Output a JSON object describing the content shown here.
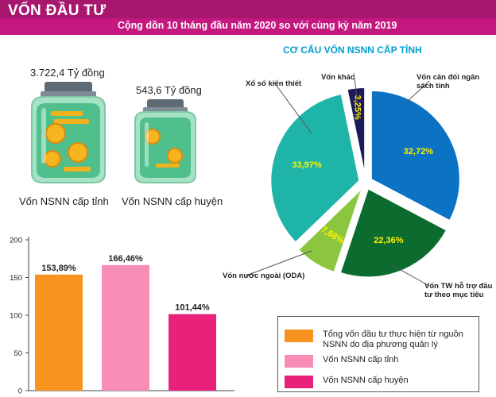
{
  "header": {
    "title": "VỐN ĐẦU TƯ",
    "subtitle": "Cộng dồn 10 tháng đầu năm 2020 so với cùng kỳ năm 2019"
  },
  "jars": [
    {
      "value_label": "3.722,4 Tỷ đồng",
      "name": "Vốn NSNN cấp tỉnh"
    },
    {
      "value_label": "543,6 Tỷ đồng",
      "name": "Vốn NSNN cấp huyện"
    }
  ],
  "colors": {
    "banner": "#a8176e",
    "pie_title": "#00a0d2",
    "orange": "#f7931e",
    "pink": "#f88db7",
    "magenta": "#e8227a"
  },
  "chart_data": [
    {
      "type": "pie",
      "title": "CƠ CẤU VỐN NSNN CẤP TỈNH",
      "slices": [
        {
          "label": "Vốn cân đối ngân sách tỉnh",
          "value": 32.72,
          "value_label": "32,72%",
          "color": "#0b72c4"
        },
        {
          "label": "Vốn TW hỗ trợ đầu tư theo mục tiêu",
          "value": 22.36,
          "value_label": "22,36%",
          "color": "#0c6b2f"
        },
        {
          "label": "Vốn nước ngoài (ODA)",
          "value": 7.68,
          "value_label": "7,68%",
          "color": "#8cc63f"
        },
        {
          "label": "Xổ số kiến thiết",
          "value": 33.97,
          "value_label": "33,97%",
          "color": "#1eb5a8"
        },
        {
          "label": "Vốn khác",
          "value": 3.25,
          "value_label": "3,25%",
          "color": "#1c1a5a"
        }
      ]
    },
    {
      "type": "bar",
      "categories": [
        "Tổng vốn đầu tư thực hiện từ nguồn NSNN do địa phương quản lý",
        "Vốn NSNN cấp tỉnh",
        "Vốn NSNN cấp huyện"
      ],
      "values": [
        153.89,
        166.46,
        101.44
      ],
      "value_labels": [
        "153,89%",
        "166,46%",
        "101,44%"
      ],
      "colors": [
        "#f7931e",
        "#f88db7",
        "#e8227a"
      ],
      "ylim": [
        0,
        200
      ],
      "yticks": [
        "0",
        "50",
        "100",
        "150",
        "200"
      ],
      "legend": "bottom-right"
    }
  ]
}
